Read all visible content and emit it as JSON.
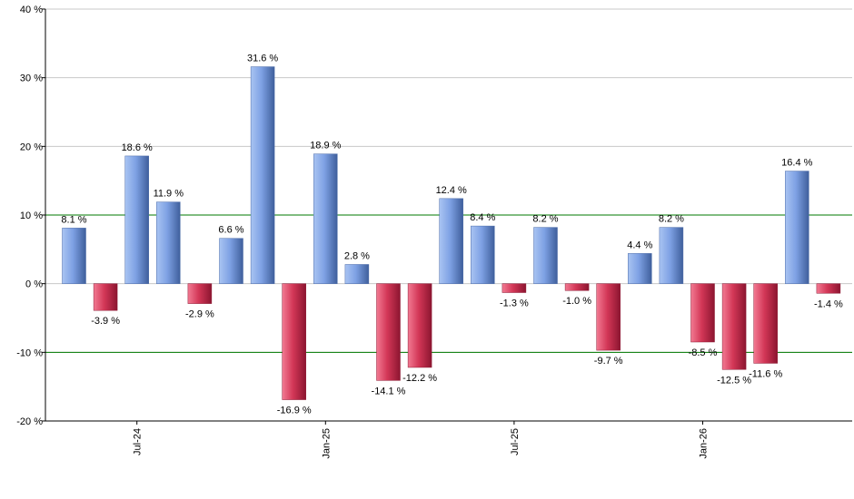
{
  "chart_data": {
    "type": "bar",
    "title": "",
    "xlabel": "",
    "ylabel": "",
    "ylim": [
      -20,
      40
    ],
    "y_ticks": [
      {
        "value": -20,
        "label": "-20 %"
      },
      {
        "value": -10,
        "label": "-10 %"
      },
      {
        "value": 0,
        "label": "0 %"
      },
      {
        "value": 10,
        "label": "10 %"
      },
      {
        "value": 20,
        "label": "20 %"
      },
      {
        "value": 30,
        "label": "30 %"
      },
      {
        "value": 40,
        "label": "40 %"
      }
    ],
    "x_tick_labels": [
      {
        "label": "Jul-24",
        "index": 2
      },
      {
        "label": "Jan-25",
        "index": 8
      },
      {
        "label": "Jul-25",
        "index": 14
      },
      {
        "label": "Jan-26",
        "index": 20
      }
    ],
    "reference_lines": [
      10,
      -10
    ],
    "grid": true,
    "legend": "none",
    "values": [
      8.1,
      -3.9,
      18.6,
      11.9,
      -2.9,
      6.6,
      31.6,
      -16.9,
      18.9,
      2.8,
      -14.1,
      -12.2,
      12.4,
      8.4,
      -1.3,
      8.2,
      -1.0,
      -9.7,
      4.4,
      8.2,
      -8.5,
      -12.5,
      -11.6,
      16.4,
      -1.4
    ],
    "data_labels": [
      "8.1 %",
      "-3.9 %",
      "18.6 %",
      "11.9 %",
      "-2.9 %",
      "6.6 %",
      "31.6 %",
      "-16.9 %",
      "18.9 %",
      "2.8 %",
      "-14.1 %",
      "-12.2 %",
      "12.4 %",
      "8.4 %",
      "-1.3 %",
      "8.2 %",
      "-1.0 %",
      "-9.7 %",
      "4.4 %",
      "8.2 %",
      "-8.5 %",
      "-12.5 %",
      "-11.6 %",
      "16.4 %",
      "-1.4 %"
    ],
    "colors": {
      "positive": "#6f95dc",
      "negative": "#c8264a",
      "gridline": "#c8c8c8",
      "reference_line": "#007a00",
      "axis": "#000000"
    }
  }
}
